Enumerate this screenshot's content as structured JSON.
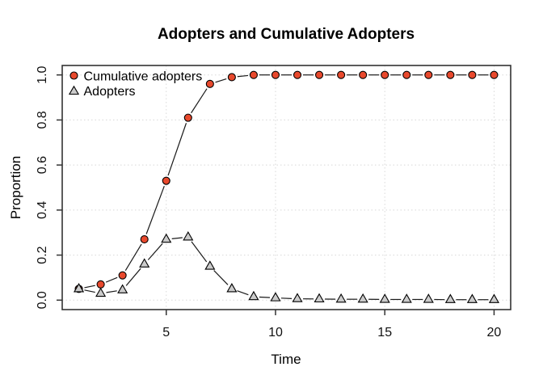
{
  "figure": {
    "title": "Adopters and Cumulative Adopters",
    "x_axis_label": "Time",
    "y_axis_label": "Proportion"
  },
  "legend": {
    "items": [
      {
        "label": "Cumulative adopters",
        "marker": "circle-icon",
        "marker_color": "#E8492D"
      },
      {
        "label": "Adopters",
        "marker": "triangle-icon",
        "marker_color": "#CBCBCB"
      }
    ]
  },
  "chart_data": {
    "type": "line",
    "title": "Adopters and Cumulative Adopters",
    "xlabel": "Time",
    "ylabel": "Proportion",
    "x": [
      1,
      2,
      3,
      4,
      5,
      6,
      7,
      8,
      9,
      10,
      11,
      12,
      13,
      14,
      15,
      16,
      17,
      18,
      19,
      20
    ],
    "series": [
      {
        "name": "Cumulative adopters",
        "marker": "circle",
        "marker_fill": "#E8492D",
        "values": [
          0.05,
          0.07,
          0.11,
          0.27,
          0.53,
          0.81,
          0.96,
          0.99,
          1.0,
          1.0,
          1.0,
          1.0,
          1.0,
          1.0,
          1.0,
          1.0,
          1.0,
          1.0,
          1.0,
          1.0
        ]
      },
      {
        "name": "Adopters",
        "marker": "triangle",
        "marker_fill": "#CBCBCB",
        "values": [
          0.05,
          0.03,
          0.045,
          0.16,
          0.27,
          0.28,
          0.15,
          0.05,
          0.015,
          0.01,
          0.006,
          0.005,
          0.004,
          0.004,
          0.003,
          0.003,
          0.003,
          0.002,
          0.002,
          0.002
        ]
      }
    ],
    "xlim": [
      0.24,
      20.76
    ],
    "ylim": [
      -0.042,
      1.042
    ],
    "x_ticks": [
      5,
      10,
      15,
      20
    ],
    "y_ticks": [
      0.0,
      0.2,
      0.4,
      0.6,
      0.8,
      1.0
    ],
    "y_tick_labels": [
      "0.0",
      "0.2",
      "0.4",
      "0.6",
      "0.8",
      "1.0"
    ],
    "grid": "dotted",
    "grid_color": "#D8D8D8",
    "line_color": "#1A1A1A",
    "box_color": "#333333",
    "legend_position": "top-left"
  }
}
